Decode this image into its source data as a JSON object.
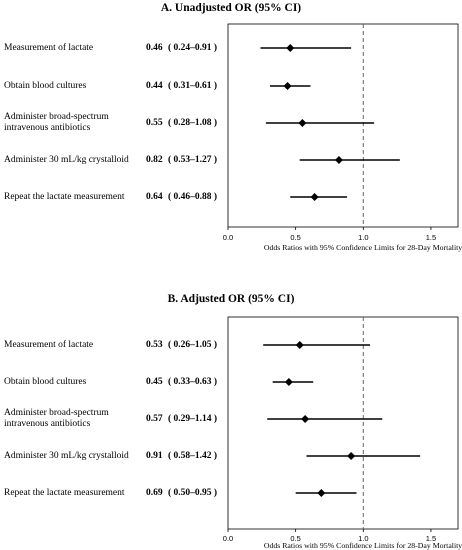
{
  "chart_data": [
    {
      "type": "forest",
      "title": "A. Unadjusted OR (95% CI)",
      "xlabel": "Odds Ratios with 95% Confidence Limits for 28-Day Mortality",
      "xlim": [
        0,
        1.7
      ],
      "xticks": [
        "0.0",
        "0.5",
        "1.0",
        "1.5"
      ],
      "reference_line": 1.0,
      "rows": [
        {
          "label": "Measurement of lactate",
          "or_text": "0.46",
          "ci_text": "( 0.24–0.91 )",
          "or": 0.46,
          "lo": 0.24,
          "hi": 0.91
        },
        {
          "label": "Obtain blood cultures",
          "or_text": "0.44",
          "ci_text": "( 0.31–0.61 )",
          "or": 0.44,
          "lo": 0.31,
          "hi": 0.61
        },
        {
          "label": "Administer broad-spectrum intravenous antibiotics",
          "or_text": "0.55",
          "ci_text": "( 0.28–1.08 )",
          "or": 0.55,
          "lo": 0.28,
          "hi": 1.08
        },
        {
          "label": "Administer 30 mL/kg crystalloid",
          "or_text": "0.82",
          "ci_text": "( 0.53–1.27 )",
          "or": 0.82,
          "lo": 0.53,
          "hi": 1.27
        },
        {
          "label": "Repeat the lactate measurement",
          "or_text": "0.64",
          "ci_text": "( 0.46–0.88 )",
          "or": 0.64,
          "lo": 0.46,
          "hi": 0.88
        }
      ]
    },
    {
      "type": "forest",
      "title": "B. Adjusted OR (95% CI)",
      "xlabel": "Odds Ratios with 95% Confidence Limits for 28-Day Mortality",
      "xlim": [
        0,
        1.7
      ],
      "xticks": [
        "0.0",
        "0.5",
        "1.0",
        "1.5"
      ],
      "reference_line": 1.0,
      "rows": [
        {
          "label": "Measurement of lactate",
          "or_text": "0.53",
          "ci_text": "( 0.26–1.05 )",
          "or": 0.53,
          "lo": 0.26,
          "hi": 1.05
        },
        {
          "label": "Obtain blood cultures",
          "or_text": "0.45",
          "ci_text": "( 0.33–0.63 )",
          "or": 0.45,
          "lo": 0.33,
          "hi": 0.63
        },
        {
          "label": "Administer broad-spectrum intravenous antibiotics",
          "or_text": "0.57",
          "ci_text": "( 0.29–1.14 )",
          "or": 0.57,
          "lo": 0.29,
          "hi": 1.14
        },
        {
          "label": "Administer 30 mL/kg crystalloid",
          "or_text": "0.91",
          "ci_text": "( 0.58–1.42 )",
          "or": 0.91,
          "lo": 0.58,
          "hi": 1.42
        },
        {
          "label": "Repeat the lactate measurement",
          "or_text": "0.69",
          "ci_text": "( 0.50–0.95 )",
          "or": 0.69,
          "lo": 0.5,
          "hi": 0.95
        }
      ]
    }
  ]
}
